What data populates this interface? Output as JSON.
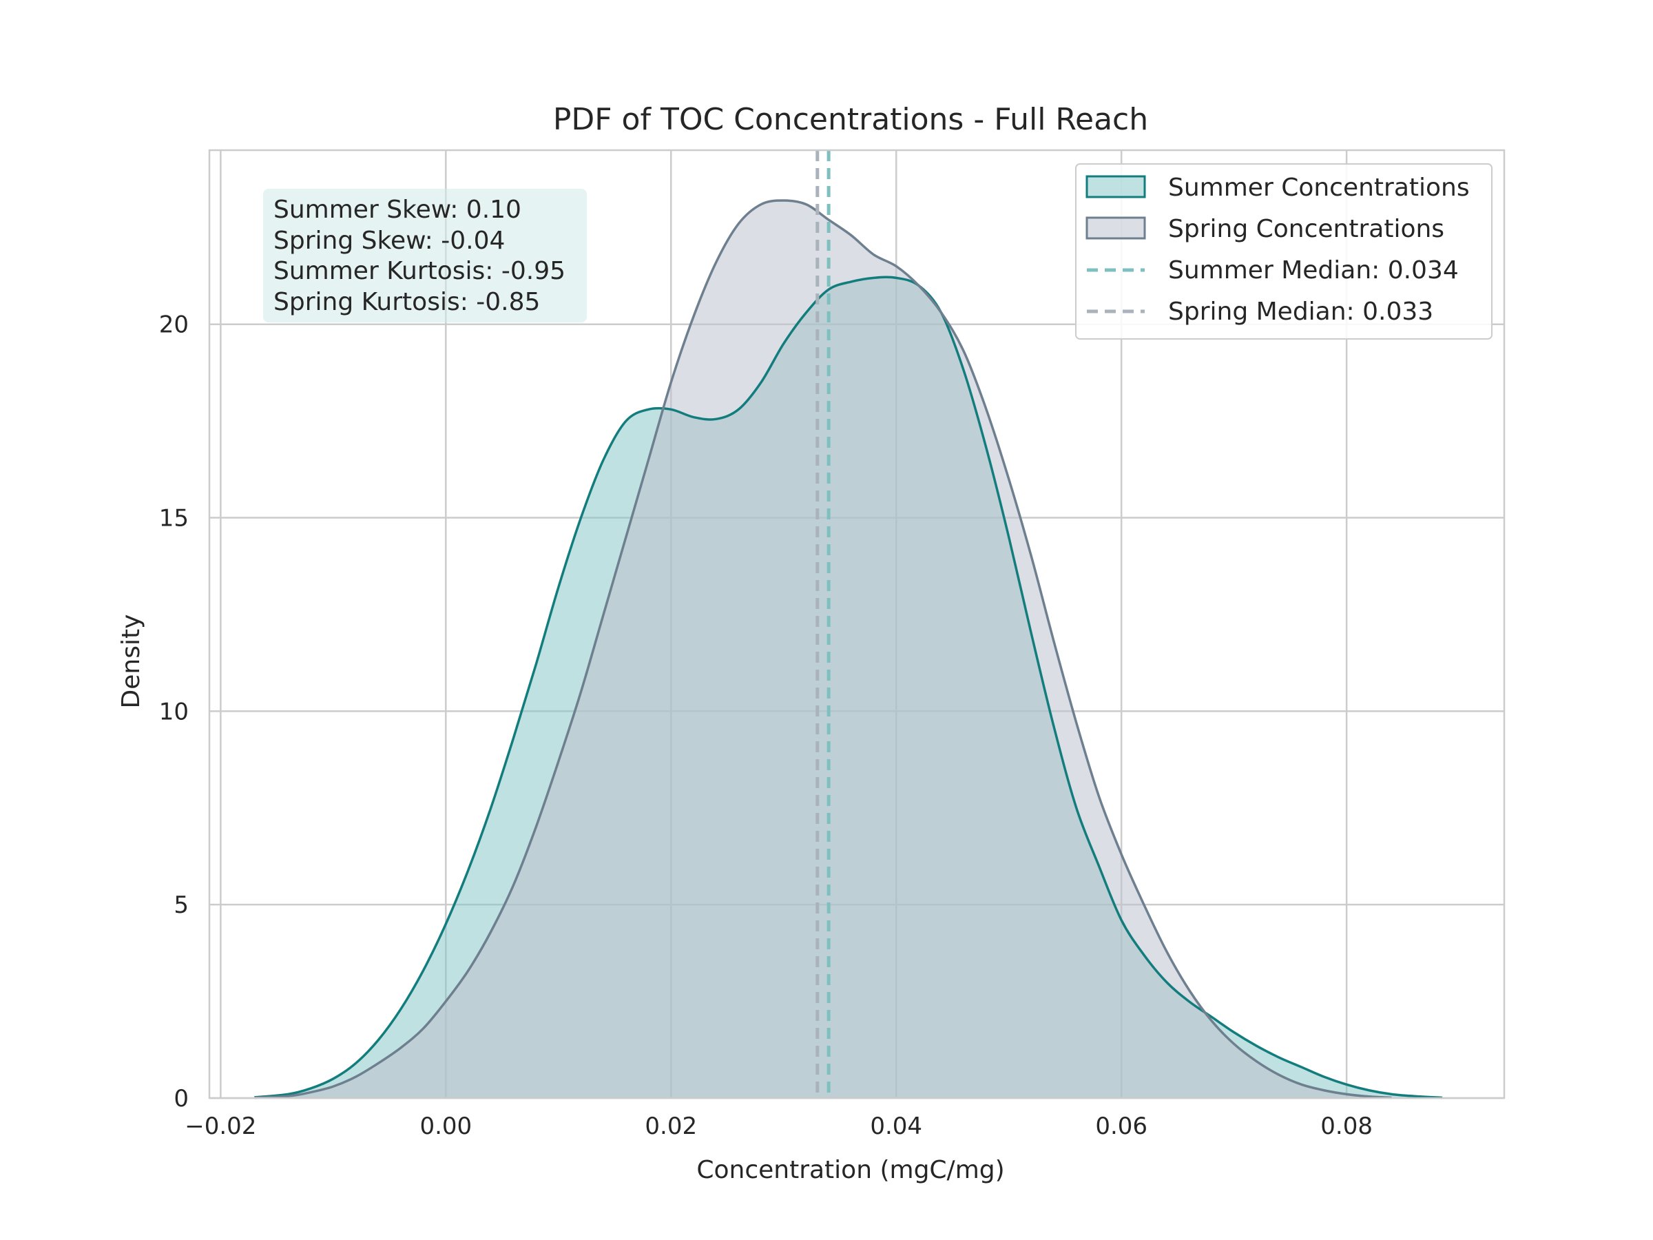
{
  "chart_data": {
    "type": "area",
    "title": "PDF of TOC Concentrations - Full Reach",
    "xlabel": "Concentration (mgC/mg)",
    "ylabel": "Density",
    "xlim": [
      -0.021,
      0.094
    ],
    "ylim": [
      0,
      24.5
    ],
    "xticks": [
      -0.02,
      0.0,
      0.02,
      0.04,
      0.06,
      0.08
    ],
    "xtick_labels": [
      "−0.02",
      "0.00",
      "0.02",
      "0.04",
      "0.06",
      "0.08"
    ],
    "yticks": [
      0,
      5,
      10,
      15,
      20
    ],
    "ytick_labels": [
      "0",
      "5",
      "10",
      "15",
      "20"
    ],
    "grid": true,
    "legend_position": "top-right",
    "series": [
      {
        "name": "Summer Concentrations",
        "legend_label": "Summer Concentrations",
        "line_color": "#137d7d",
        "fill_color": "#7fc4c4",
        "fill_opacity": 0.5,
        "x": [
          -0.017,
          -0.014,
          -0.012,
          -0.01,
          -0.008,
          -0.006,
          -0.004,
          -0.002,
          0.0,
          0.002,
          0.004,
          0.006,
          0.008,
          0.01,
          0.012,
          0.014,
          0.016,
          0.018,
          0.02,
          0.022,
          0.024,
          0.026,
          0.028,
          0.03,
          0.032,
          0.034,
          0.036,
          0.038,
          0.04,
          0.042,
          0.044,
          0.046,
          0.048,
          0.05,
          0.052,
          0.054,
          0.056,
          0.058,
          0.06,
          0.062,
          0.064,
          0.066,
          0.068,
          0.07,
          0.072,
          0.074,
          0.076,
          0.078,
          0.08,
          0.082,
          0.084,
          0.086,
          0.0885
        ],
        "y": [
          0.02,
          0.1,
          0.25,
          0.5,
          0.9,
          1.5,
          2.3,
          3.3,
          4.5,
          5.9,
          7.5,
          9.3,
          11.2,
          13.2,
          15.0,
          16.5,
          17.5,
          17.8,
          17.8,
          17.6,
          17.55,
          17.8,
          18.5,
          19.5,
          20.3,
          20.9,
          21.1,
          21.2,
          21.2,
          21.0,
          20.3,
          18.8,
          16.8,
          14.5,
          12.0,
          9.6,
          7.5,
          6.0,
          4.6,
          3.7,
          3.0,
          2.5,
          2.1,
          1.7,
          1.35,
          1.05,
          0.8,
          0.55,
          0.35,
          0.2,
          0.1,
          0.05,
          0.01
        ]
      },
      {
        "name": "Spring Concentrations",
        "legend_label": "Spring Concentrations",
        "line_color": "#6e7f8f",
        "fill_color": "#bec3ce",
        "fill_opacity": 0.55,
        "x": [
          -0.017,
          -0.014,
          -0.012,
          -0.01,
          -0.008,
          -0.006,
          -0.004,
          -0.002,
          0.0,
          0.002,
          0.004,
          0.006,
          0.008,
          0.01,
          0.012,
          0.014,
          0.016,
          0.018,
          0.02,
          0.022,
          0.024,
          0.026,
          0.028,
          0.03,
          0.032,
          0.034,
          0.036,
          0.038,
          0.04,
          0.042,
          0.044,
          0.046,
          0.048,
          0.05,
          0.052,
          0.054,
          0.056,
          0.058,
          0.06,
          0.062,
          0.064,
          0.066,
          0.068,
          0.07,
          0.072,
          0.074,
          0.076,
          0.078,
          0.08,
          0.082,
          0.084
        ],
        "y": [
          0.01,
          0.05,
          0.15,
          0.3,
          0.55,
          0.9,
          1.3,
          1.8,
          2.5,
          3.3,
          4.3,
          5.5,
          7.0,
          8.7,
          10.5,
          12.5,
          14.5,
          16.5,
          18.5,
          20.2,
          21.6,
          22.6,
          23.1,
          23.2,
          23.1,
          22.7,
          22.3,
          21.8,
          21.5,
          21.0,
          20.3,
          19.3,
          17.8,
          16.0,
          14.0,
          11.8,
          9.7,
          7.8,
          6.3,
          5.0,
          3.8,
          2.8,
          2.0,
          1.4,
          0.95,
          0.6,
          0.35,
          0.2,
          0.1,
          0.04,
          0.01
        ]
      }
    ],
    "medians": [
      {
        "name": "Summer Median",
        "legend_label": "Summer Median: 0.034",
        "value": 0.034,
        "color": "#7fbfbf"
      },
      {
        "name": "Spring Median",
        "legend_label": "Spring Median: 0.033",
        "value": 0.033,
        "color": "#aab2bc"
      }
    ],
    "stats_box": {
      "lines": [
        "Summer Skew: 0.10",
        "Spring Skew: -0.04",
        "Summer Kurtosis: -0.95",
        "Spring Kurtosis: -0.85"
      ],
      "background": "#cfe9e7"
    }
  }
}
